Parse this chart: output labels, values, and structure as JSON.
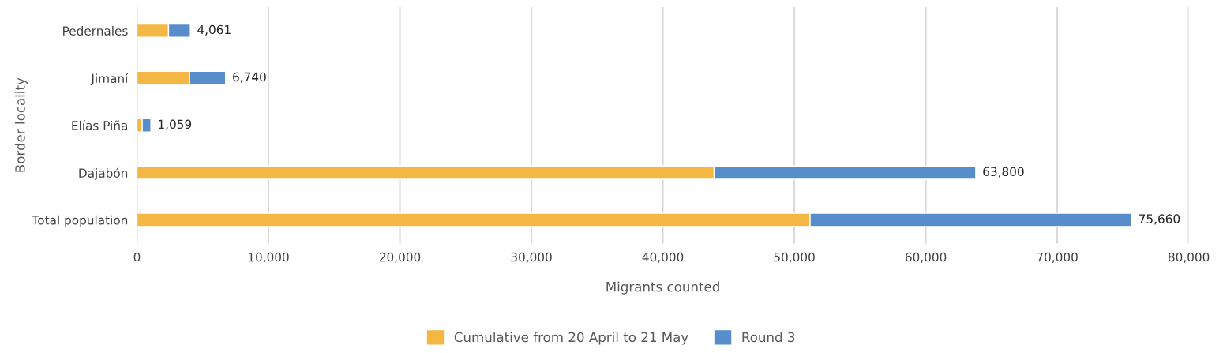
{
  "chart_data": {
    "type": "bar",
    "orientation": "horizontal",
    "stacked": true,
    "categories": [
      "Pedernales",
      "Jimaní",
      "Elías Piña",
      "Dajabón",
      "Total population"
    ],
    "series": [
      {
        "name": "Cumulative from 20 April to 21 May",
        "color": "#f4b744",
        "values": [
          2400,
          4000,
          400,
          43900,
          51200
        ]
      },
      {
        "name": "Round 3",
        "color": "#588dcc",
        "values": [
          1661,
          2740,
          659,
          19900,
          24460
        ]
      }
    ],
    "totals": [
      "4,061",
      "6,740",
      "1,059",
      "63,800",
      "75,660"
    ],
    "xlim": [
      0,
      80000
    ],
    "xticks": [
      {
        "value": 0,
        "label": "0"
      },
      {
        "value": 10000,
        "label": "10,000"
      },
      {
        "value": 20000,
        "label": "20,000"
      },
      {
        "value": 30000,
        "label": "30,000"
      },
      {
        "value": 40000,
        "label": "40,000"
      },
      {
        "value": 50000,
        "label": "50,000"
      },
      {
        "value": 60000,
        "label": "60,000"
      },
      {
        "value": 70000,
        "label": "70,000"
      },
      {
        "value": 80000,
        "label": "80,000"
      }
    ],
    "xlabel": "Migrants counted",
    "ylabel": "Border locality",
    "grid": "x",
    "legend": "bottom"
  }
}
